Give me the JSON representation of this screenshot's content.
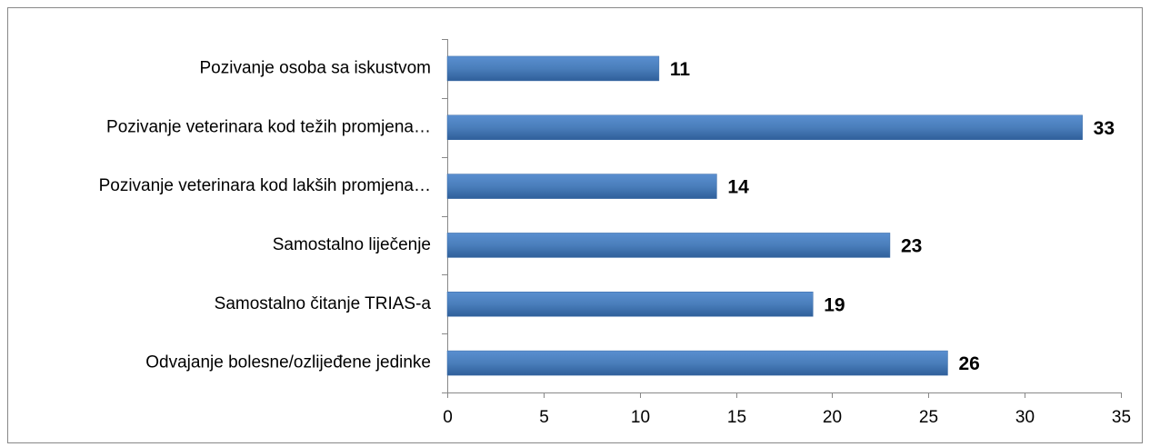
{
  "chart_data": {
    "type": "bar",
    "orientation": "horizontal",
    "categories": [
      "Pozivanje osoba sa iskustvom",
      "Pozivanje veterinara kod težih promjena…",
      "Pozivanje veterinara kod lakših promjena…",
      "Samostalno liječenje",
      "Samostalno čitanje TRIAS-a",
      "Odvajanje bolesne/ozlijeđene jedinke"
    ],
    "values": [
      11,
      33,
      14,
      23,
      19,
      26
    ],
    "color": "#4a7ebb",
    "xlim": [
      0,
      35
    ],
    "xticks": [
      0,
      5,
      10,
      15,
      20,
      25,
      30,
      35
    ],
    "grid": false
  }
}
